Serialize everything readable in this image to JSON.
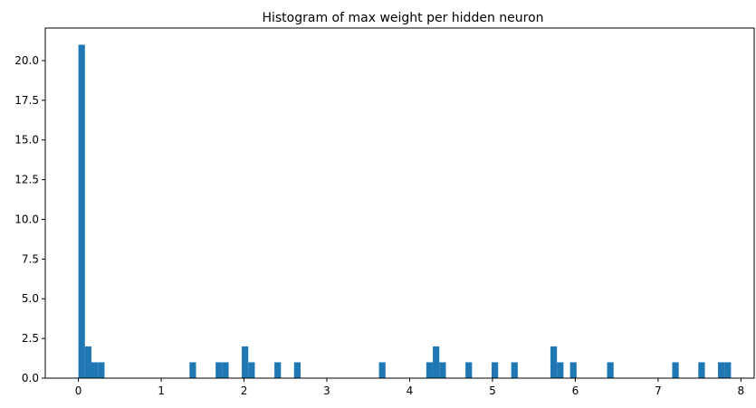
{
  "chart_data": {
    "type": "bar",
    "title": "Histogram of max weight per hidden neuron",
    "xlabel": "",
    "ylabel": "",
    "bar_color": "#1f77b4",
    "grid": false,
    "xlim": [
      -0.4,
      8.16
    ],
    "ylim": [
      0,
      22.05
    ],
    "bin_width": 0.0789,
    "x_ticks": [
      "0",
      "1",
      "2",
      "3",
      "4",
      "5",
      "6",
      "7",
      "8"
    ],
    "y_ticks": [
      "0.0",
      "2.5",
      "5.0",
      "7.5",
      "10.0",
      "12.5",
      "15.0",
      "17.5",
      "20.0"
    ],
    "bins": [
      {
        "x": 0.0,
        "count": 21
      },
      {
        "x": 0.0789,
        "count": 2
      },
      {
        "x": 0.1578,
        "count": 1
      },
      {
        "x": 0.2367,
        "count": 1
      },
      {
        "x": 1.3413,
        "count": 1
      },
      {
        "x": 1.6569,
        "count": 1
      },
      {
        "x": 1.7358,
        "count": 1
      },
      {
        "x": 1.9725,
        "count": 2
      },
      {
        "x": 2.0514,
        "count": 1
      },
      {
        "x": 2.367,
        "count": 1
      },
      {
        "x": 2.6037,
        "count": 1
      },
      {
        "x": 3.6294,
        "count": 1
      },
      {
        "x": 4.2006,
        "count": 1
      },
      {
        "x": 4.2795,
        "count": 2
      },
      {
        "x": 4.3584,
        "count": 1
      },
      {
        "x": 4.674,
        "count": 1
      },
      {
        "x": 4.9896,
        "count": 1
      },
      {
        "x": 5.2263,
        "count": 1
      },
      {
        "x": 5.6997,
        "count": 2
      },
      {
        "x": 5.7786,
        "count": 1
      },
      {
        "x": 5.9364,
        "count": 1
      },
      {
        "x": 6.3834,
        "count": 1
      },
      {
        "x": 7.17,
        "count": 1
      },
      {
        "x": 7.4856,
        "count": 1
      },
      {
        "x": 7.7223,
        "count": 1
      },
      {
        "x": 7.8012,
        "count": 1
      }
    ]
  }
}
